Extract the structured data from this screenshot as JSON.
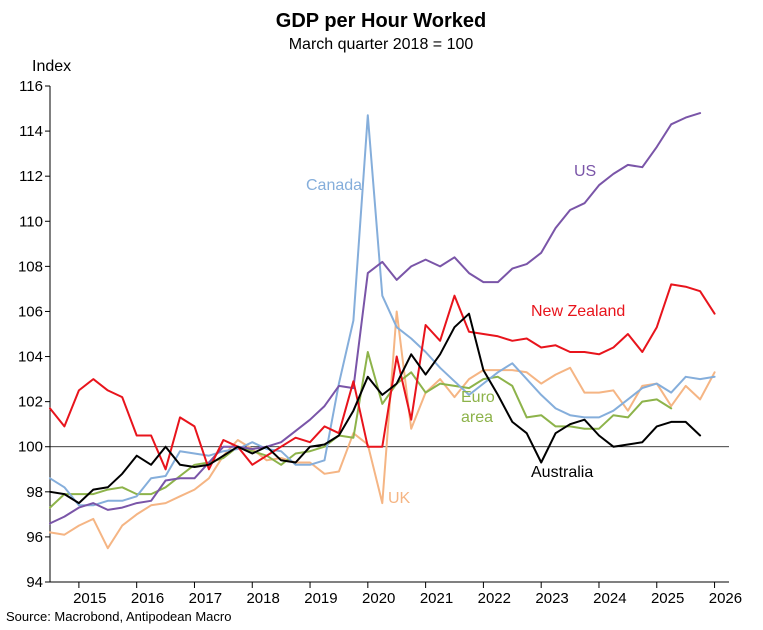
{
  "chart_data": {
    "type": "line",
    "title": "GDP per Hour Worked",
    "subtitle": "March quarter 2018 = 100",
    "ylabel": "Index",
    "source": "Source: Macrobond, Antipodean Macro",
    "ylim": [
      94,
      116
    ],
    "yticks": [
      94,
      96,
      98,
      100,
      102,
      104,
      106,
      108,
      110,
      112,
      114,
      116
    ],
    "xlim": [
      2014.5,
      2026.25
    ],
    "xtick_labels": [
      "2015",
      "2016",
      "2017",
      "2018",
      "2019",
      "2020",
      "2021",
      "2022",
      "2023",
      "2024",
      "2025",
      "2026"
    ],
    "reference_line": 100,
    "grid": false,
    "x_start": 2014.5,
    "x_step": 0.25,
    "series": [
      {
        "name": "US",
        "color": "#7a55a8",
        "label_lines": [
          "US"
        ],
        "values": [
          96.6,
          96.9,
          97.3,
          97.5,
          97.2,
          97.3,
          97.5,
          97.6,
          98.5,
          98.6,
          98.6,
          99.3,
          100.0,
          100.0,
          99.9,
          100.0,
          100.2,
          100.7,
          101.2,
          101.8,
          102.7,
          102.6,
          107.7,
          108.2,
          107.4,
          108.0,
          108.3,
          108.0,
          108.4,
          107.7,
          107.3,
          107.3,
          107.9,
          108.1,
          108.6,
          109.7,
          110.5,
          110.8,
          111.6,
          112.1,
          112.5,
          112.4,
          113.3,
          114.3,
          114.6,
          114.8
        ]
      },
      {
        "name": "Canada",
        "color": "#85aedb",
        "label_lines": [
          "Canada"
        ],
        "values": [
          98.6,
          98.2,
          97.4,
          97.4,
          97.6,
          97.6,
          97.8,
          98.6,
          98.7,
          99.8,
          99.7,
          99.6,
          99.8,
          99.9,
          100.2,
          99.9,
          99.8,
          99.2,
          99.2,
          99.4,
          102.8,
          105.6,
          114.7,
          106.7,
          105.3,
          104.8,
          104.2,
          103.5,
          102.9,
          102.3,
          102.8,
          103.3,
          103.7,
          103.0,
          102.3,
          101.7,
          101.4,
          101.3,
          101.3,
          101.6,
          102.1,
          102.6,
          102.8,
          102.4,
          103.1,
          103.0,
          103.1
        ]
      },
      {
        "name": "New Zealand",
        "color": "#e8141c",
        "label_lines": [
          "New Zealand"
        ],
        "values": [
          101.7,
          100.9,
          102.5,
          103.0,
          102.5,
          102.2,
          100.5,
          100.5,
          99.0,
          101.3,
          100.9,
          99.0,
          100.3,
          100.0,
          99.2,
          99.6,
          100.0,
          100.4,
          100.2,
          100.9,
          100.6,
          102.9,
          100.0,
          100.0,
          104.0,
          101.2,
          105.4,
          104.7,
          106.7,
          105.1,
          105.0,
          104.9,
          104.7,
          104.8,
          104.4,
          104.5,
          104.2,
          104.2,
          104.1,
          104.4,
          105.0,
          104.2,
          105.3,
          107.2,
          107.1,
          106.9,
          105.9
        ]
      },
      {
        "name": "UK",
        "color": "#f5b584",
        "label_lines": [
          "UK"
        ],
        "values": [
          96.2,
          96.1,
          96.5,
          96.8,
          95.5,
          96.5,
          97.0,
          97.4,
          97.5,
          97.8,
          98.1,
          98.6,
          99.6,
          100.3,
          99.9,
          99.4,
          99.5,
          99.3,
          99.3,
          98.8,
          98.9,
          100.6,
          100.1,
          97.5,
          106.0,
          100.8,
          102.4,
          103.0,
          102.2,
          103.0,
          103.4,
          103.4,
          103.4,
          103.3,
          102.8,
          103.2,
          103.5,
          102.4,
          102.4,
          102.5,
          101.6,
          102.7,
          102.8,
          101.8,
          102.7,
          102.1,
          103.3
        ]
      },
      {
        "name": "Euro area",
        "color": "#8db34a",
        "label_lines": [
          "Euro",
          "area"
        ],
        "values": [
          97.3,
          97.9,
          97.9,
          97.9,
          98.1,
          98.2,
          97.9,
          97.9,
          98.2,
          98.7,
          99.2,
          99.3,
          99.5,
          100.0,
          99.8,
          99.6,
          99.2,
          99.7,
          99.8,
          100.0,
          100.5,
          100.4,
          104.2,
          101.9,
          102.8,
          103.3,
          102.4,
          102.8,
          102.7,
          102.6,
          103.0,
          103.1,
          102.7,
          101.3,
          101.4,
          100.9,
          100.9,
          100.8,
          100.8,
          101.4,
          101.3,
          102.0,
          102.1,
          101.7
        ]
      },
      {
        "name": "Australia",
        "color": "#000000",
        "label_lines": [
          "Australia"
        ],
        "values": [
          98.0,
          97.9,
          97.5,
          98.1,
          98.2,
          98.8,
          99.6,
          99.2,
          100.0,
          99.2,
          99.1,
          99.2,
          99.6,
          100.0,
          99.7,
          100.0,
          99.4,
          99.3,
          100.0,
          100.1,
          100.5,
          101.6,
          103.1,
          102.3,
          102.8,
          104.1,
          103.2,
          104.1,
          105.3,
          105.9,
          103.4,
          102.3,
          101.1,
          100.6,
          99.3,
          100.6,
          101.0,
          101.2,
          100.5,
          100.0,
          100.1,
          100.2,
          100.9,
          101.1,
          101.1,
          100.5
        ]
      }
    ]
  }
}
